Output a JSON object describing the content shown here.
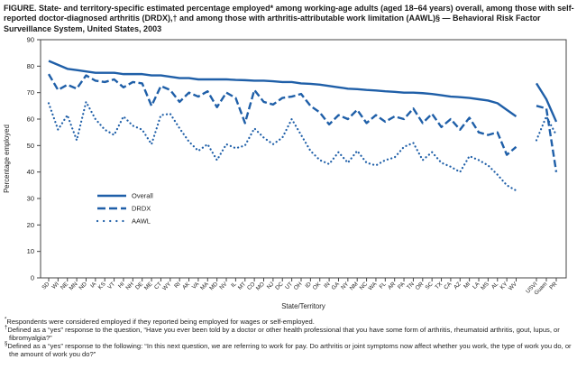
{
  "figure": {
    "title": "FIGURE. State- and territory-specific estimated percentage employed* among working-age adults (aged 18–64 years) overall, among those with self-reported doctor-diagnosed arthritis (DRDX),† and among those with arthritis-attributable work limitation (AAWL)§ — Behavioral Risk Factor Surveillance System, United States, 2003"
  },
  "footnotes": [
    {
      "marker": "*",
      "text": "Respondents were considered employed if they reported being employed for wages or self-employed."
    },
    {
      "marker": "†",
      "text": "Defined as a “yes” response to the question, “Have you ever been told by a doctor or other health professional that you have some form of arthritis, rheumatoid arthritis, gout, lupus, or fibromyalgia?”"
    },
    {
      "marker": "§",
      "text": "Defined as a “yes” response to the following: “In this next question, we are referring to work for pay. Do arthritis or joint symptoms now affect whether you work, the type of work you do, or the amount of work you do?”"
    }
  ],
  "chart_data": {
    "type": "line",
    "xlabel": "State/Territory",
    "ylabel": "Percentage employed",
    "ylim": [
      0,
      90
    ],
    "yticks": [
      0,
      10,
      20,
      30,
      40,
      50,
      60,
      70,
      80,
      90
    ],
    "grid": false,
    "legend_position": "inside-lower-left",
    "line_color": "#1f5fa8",
    "axis_color": "#444444",
    "gap_after_index": 50,
    "categories": [
      "SD",
      "WI",
      "NE",
      "MN",
      "ND",
      "IA",
      "KS",
      "VT",
      "HI",
      "NH",
      "DE",
      "ME",
      "CT",
      "WY",
      "RI",
      "AK",
      "VA",
      "MA",
      "MD",
      "NV",
      "IL",
      "MT",
      "CO",
      "MO",
      "NJ",
      "DC",
      "UT",
      "OH",
      "ID",
      "OK",
      "IN",
      "GA",
      "NY",
      "NM",
      "NC",
      "WA",
      "FL",
      "AR",
      "PA",
      "TN",
      "OR",
      "SC",
      "TX",
      "CA",
      "AZ",
      "MI",
      "LA",
      "MS",
      "AL",
      "KY",
      "WV",
      "USVI",
      "Guam",
      "PR"
    ],
    "series": [
      {
        "name": "Overall",
        "style": "solid",
        "values": [
          82,
          80.5,
          79,
          78.5,
          78,
          77.5,
          77.5,
          77.5,
          77,
          77,
          77,
          76.5,
          76.5,
          76,
          75.5,
          75.5,
          75,
          75,
          75,
          75,
          74.8,
          74.7,
          74.5,
          74.5,
          74.3,
          74,
          74,
          73.5,
          73.3,
          73,
          72.5,
          72,
          71.5,
          71.3,
          71,
          70.8,
          70.5,
          70.3,
          70,
          70,
          69.8,
          69.5,
          69,
          68.5,
          68.3,
          68,
          67.5,
          67,
          66,
          63.5,
          61,
          73.5,
          67.5,
          59
        ]
      },
      {
        "name": "DRDX",
        "style": "dashed",
        "values": [
          77,
          71,
          73,
          71.5,
          76.5,
          74.5,
          74,
          75,
          72,
          74,
          73.5,
          65,
          72.5,
          71,
          66.5,
          70,
          68.5,
          70.5,
          64.5,
          70,
          68,
          58.5,
          71,
          66.5,
          65.5,
          68,
          68.5,
          69.5,
          65,
          62.5,
          58,
          61.5,
          60,
          63.5,
          58.5,
          61.5,
          59,
          61,
          60,
          64,
          58.5,
          62,
          57,
          60,
          56,
          60.5,
          55,
          54,
          55,
          46.5,
          49.5,
          65,
          64,
          40
        ]
      },
      {
        "name": "AAWL",
        "style": "dotted",
        "values": [
          66,
          56,
          61.5,
          52,
          66.5,
          60,
          56,
          54,
          61,
          57.5,
          56,
          50.5,
          61.5,
          62,
          56.5,
          51.5,
          48,
          50.5,
          44.5,
          50.5,
          49,
          50,
          56.5,
          53,
          50.5,
          53,
          60,
          54,
          48,
          44.5,
          43,
          47.5,
          43.5,
          48,
          43.5,
          42.5,
          44.5,
          45.5,
          49.5,
          51,
          44.5,
          47.5,
          43.5,
          42,
          40,
          46,
          44.5,
          42.5,
          39,
          35,
          33,
          52,
          61,
          54
        ]
      }
    ]
  }
}
